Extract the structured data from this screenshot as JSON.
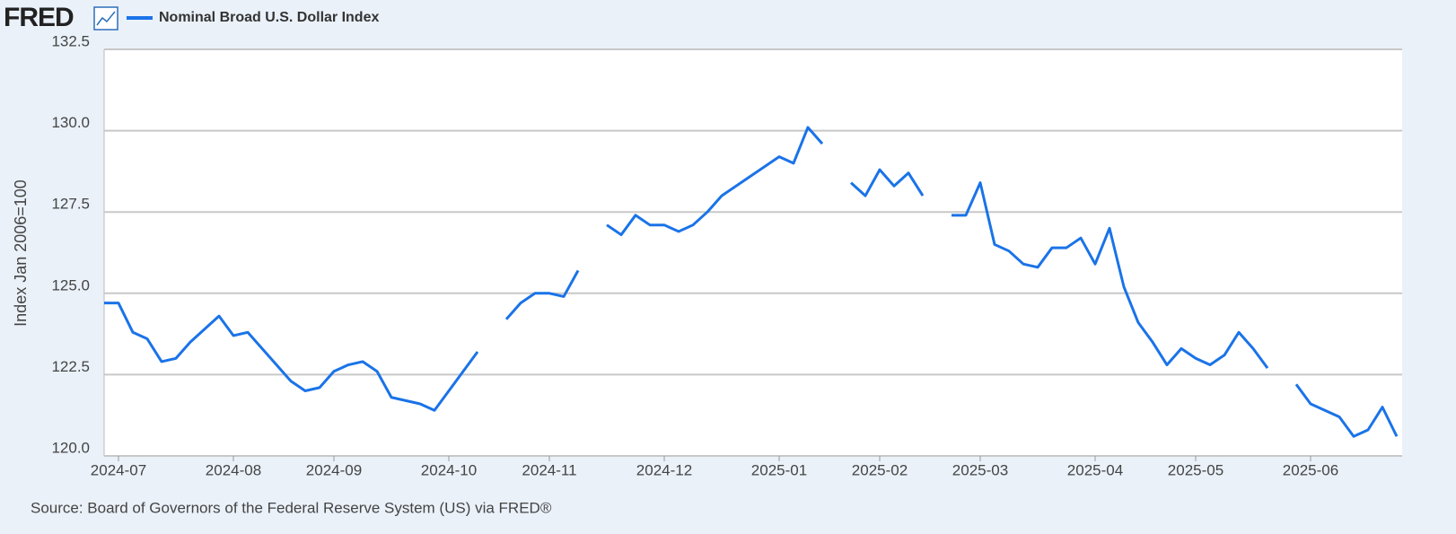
{
  "logo": "FRED",
  "chart_data": {
    "type": "line",
    "ylabel": "Index Jan 2006=100",
    "source": "Source: Board of Governors of the Federal Reserve System (US) via FRED®",
    "categories": [
      null,
      "2024-07",
      null,
      null,
      null,
      null,
      null,
      null,
      null,
      "2024-08",
      null,
      null,
      null,
      null,
      null,
      null,
      "2024-09",
      null,
      null,
      null,
      null,
      null,
      null,
      null,
      "2024-10",
      null,
      null,
      null,
      null,
      null,
      null,
      "2024-11",
      null,
      null,
      null,
      null,
      null,
      null,
      null,
      "2024-12",
      null,
      null,
      null,
      null,
      null,
      null,
      null,
      "2025-01",
      null,
      null,
      null,
      null,
      null,
      null,
      "2025-02",
      null,
      null,
      null,
      null,
      null,
      null,
      "2025-03",
      null,
      null,
      null,
      null,
      null,
      null,
      null,
      "2025-04",
      null,
      null,
      null,
      null,
      null,
      null,
      "2025-05",
      null,
      null,
      null,
      null,
      null,
      null,
      null,
      "2025-06",
      null,
      null,
      null,
      null,
      null,
      null
    ],
    "series": [
      {
        "name": "Nominal Broad U.S. Dollar Index",
        "color": "#1a73e8",
        "values": [
          124.7,
          124.7,
          123.8,
          123.6,
          122.9,
          123.0,
          123.5,
          123.9,
          124.3,
          123.7,
          123.8,
          123.3,
          122.8,
          122.3,
          122.0,
          122.1,
          122.6,
          122.8,
          122.9,
          122.6,
          121.8,
          121.7,
          121.6,
          121.4,
          122.0,
          122.6,
          123.2,
          null,
          124.2,
          124.7,
          125.0,
          125.0,
          124.9,
          125.7,
          null,
          127.1,
          126.8,
          127.4,
          127.1,
          127.1,
          126.9,
          127.1,
          127.5,
          128.0,
          128.3,
          128.6,
          128.9,
          129.2,
          129.0,
          130.1,
          129.6,
          null,
          128.4,
          128.0,
          128.8,
          128.3,
          128.7,
          128.0,
          null,
          127.4,
          127.4,
          128.4,
          126.5,
          126.3,
          125.9,
          125.8,
          126.4,
          126.4,
          126.7,
          125.9,
          127.0,
          125.2,
          124.1,
          123.5,
          122.8,
          123.3,
          123.0,
          122.8,
          123.1,
          123.8,
          123.3,
          122.7,
          null,
          122.2,
          121.6,
          121.4,
          121.2,
          120.6,
          120.8,
          121.5,
          120.6
        ]
      }
    ],
    "ylim": [
      120,
      132.5
    ],
    "yticks": [
      {
        "value": 120,
        "label": "120.0"
      },
      {
        "value": 122.5,
        "label": "122.5"
      },
      {
        "value": 125,
        "label": "125.0"
      },
      {
        "value": 127.5,
        "label": "127.5"
      },
      {
        "value": 130,
        "label": "130.0"
      },
      {
        "value": 132.5,
        "label": "132.5"
      }
    ],
    "grid": true
  }
}
